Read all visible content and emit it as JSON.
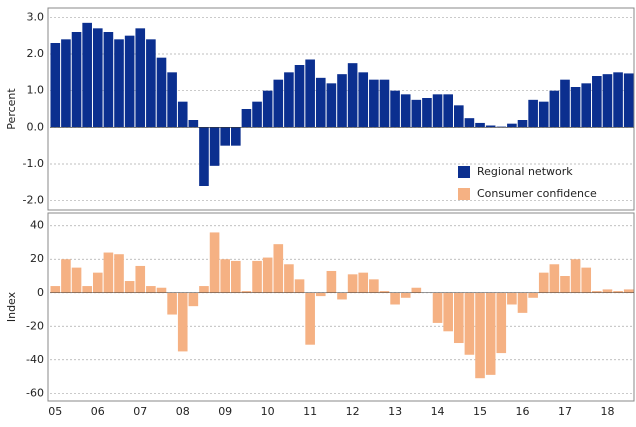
{
  "chart_data": [
    {
      "type": "bar",
      "y_label": "Percent",
      "categories": [
        "05",
        null,
        null,
        null,
        "06",
        null,
        null,
        null,
        "07",
        null,
        null,
        null,
        "08",
        null,
        null,
        null,
        "09",
        null,
        null,
        null,
        "10",
        null,
        null,
        null,
        "11",
        null,
        null,
        null,
        "12",
        null,
        null,
        null,
        "13",
        null,
        null,
        null,
        "14",
        null,
        null,
        null,
        "15",
        null,
        null,
        null,
        "16",
        null,
        null,
        null,
        "17",
        null,
        null,
        null,
        "18",
        null,
        null
      ],
      "series": [
        {
          "name": "Regional network",
          "color": "#0b2f8f",
          "values": [
            2.3,
            2.4,
            2.6,
            2.85,
            2.7,
            2.6,
            2.4,
            2.5,
            2.7,
            2.4,
            1.9,
            1.5,
            0.7,
            0.2,
            -1.6,
            -1.05,
            -0.5,
            -0.5,
            0.5,
            0.7,
            1.0,
            1.3,
            1.5,
            1.7,
            1.85,
            1.35,
            1.2,
            1.45,
            1.75,
            1.5,
            1.3,
            1.3,
            1.0,
            0.9,
            0.75,
            0.8,
            0.9,
            0.9,
            0.6,
            0.25,
            0.12,
            0.05,
            0.02,
            0.1,
            0.2,
            0.75,
            0.7,
            1.0,
            1.3,
            1.1,
            1.2,
            1.4,
            1.45,
            1.5,
            1.47
          ]
        }
      ],
      "ylim": [
        -2.2,
        3.2
      ],
      "yticks": [
        {
          "value": 3,
          "label": "3.0"
        },
        {
          "value": 2,
          "label": "2.0"
        },
        {
          "value": 1,
          "label": "1.0"
        },
        {
          "value": 0,
          "label": "0.0"
        },
        {
          "value": -1,
          "label": "-1.0"
        },
        {
          "value": -2,
          "label": "-2.0"
        }
      ],
      "grid": true,
      "legend": "lower right"
    },
    {
      "type": "bar",
      "y_label": "Index",
      "categories": [
        "05",
        null,
        null,
        null,
        "06",
        null,
        null,
        null,
        "07",
        null,
        null,
        null,
        "08",
        null,
        null,
        null,
        "09",
        null,
        null,
        null,
        "10",
        null,
        null,
        null,
        "11",
        null,
        null,
        null,
        "12",
        null,
        null,
        null,
        "13",
        null,
        null,
        null,
        "14",
        null,
        null,
        null,
        "15",
        null,
        null,
        null,
        "16",
        null,
        null,
        null,
        "17",
        null,
        null,
        null,
        "18",
        null,
        null
      ],
      "series": [
        {
          "name": "Consumer confidence",
          "color": "#f5b183",
          "values": [
            4,
            20,
            15,
            4,
            12,
            24,
            23,
            7,
            16,
            4,
            3,
            -13,
            -35,
            -8,
            4,
            36,
            20,
            19,
            1,
            19,
            21,
            29,
            17,
            8,
            -31,
            -2,
            13,
            -4,
            11,
            12,
            8,
            1,
            -7,
            -3,
            3,
            0,
            -18,
            -23,
            -30,
            -37,
            -51,
            -49,
            -36,
            -7,
            -12,
            -3,
            12,
            17,
            10,
            20,
            15,
            1,
            2,
            1,
            2
          ]
        }
      ],
      "ylim": [
        -64,
        47
      ],
      "yticks": [
        40,
        20,
        0,
        -20,
        -40,
        -60
      ],
      "grid": true
    }
  ]
}
